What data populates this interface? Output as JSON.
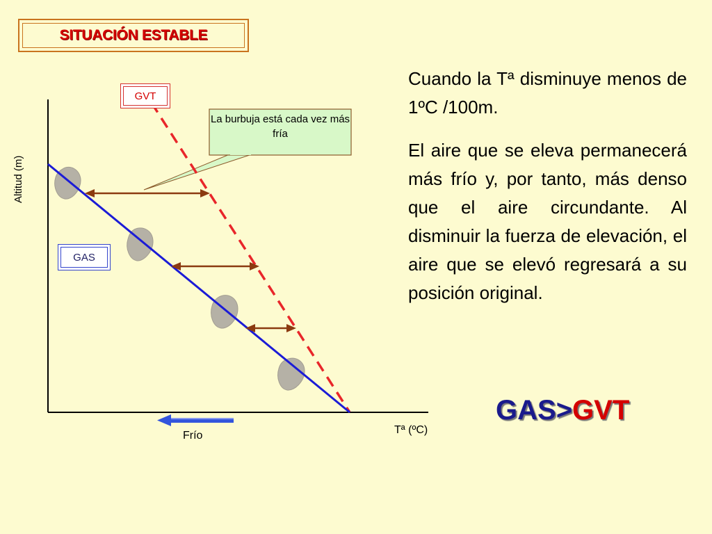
{
  "title": "SITUACIÓN ESTABLE",
  "diagram": {
    "y_axis_label": "Altitud (m)",
    "x_axis_label": "Tª (ºC)",
    "cold_arrow_label": "Frío",
    "gvt_label": "GVT",
    "gas_label": "GAS",
    "callout_text": "La burbuja está cada vez más fría",
    "colors": {
      "gvt_line": "#e8262a",
      "gas_line": "#1b1bd6",
      "arrow": "#8b3a10",
      "bubble": "#b5b1a6",
      "cold_arrow": "#3355dd",
      "callout_fill": "#d8f8c8"
    }
  },
  "text": {
    "paragraph1": "Cuando la Tª disminuye menos de 1ºC /100m.",
    "paragraph2": "El aire que se eleva permanecerá más frío y, por tanto, más denso que el aire circundante. Al disminuir la fuerza de elevación, el aire que se elevó regresará a su posición original."
  },
  "result": {
    "left": "GAS",
    "operator": ">",
    "right": "GVT"
  }
}
